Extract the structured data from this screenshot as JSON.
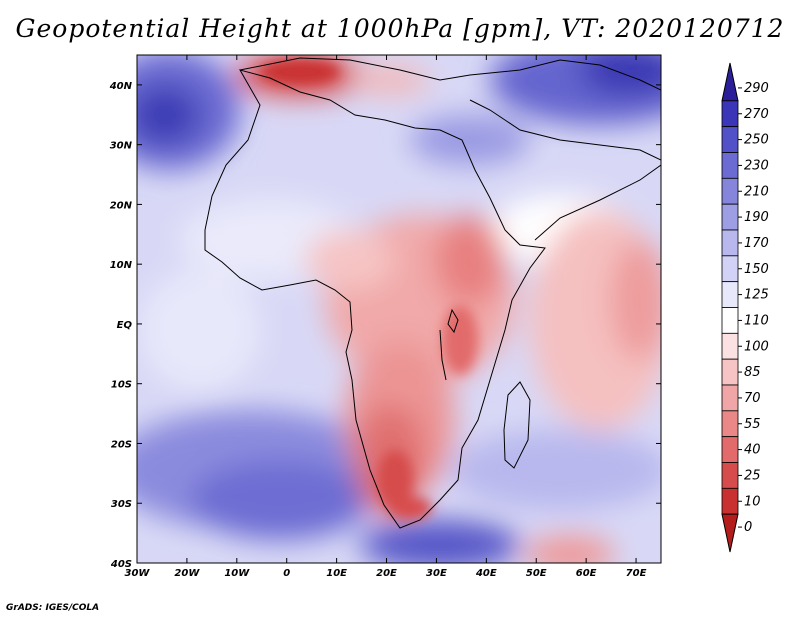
{
  "title": "Geopotential Height at 1000hPa [gpm], VT: 2020120712",
  "credit": "GrADS: IGES/COLA",
  "map": {
    "lon_range": [
      -30,
      75
    ],
    "lat_range": [
      -40,
      45
    ],
    "lon_ticks": [
      "30W",
      "20W",
      "10W",
      "0",
      "10E",
      "20E",
      "30E",
      "40E",
      "50E",
      "60E",
      "70E"
    ],
    "lat_ticks": [
      "40N",
      "30N",
      "20N",
      "10N",
      "EQ",
      "10S",
      "20S",
      "30S",
      "40S"
    ]
  },
  "colorbar": {
    "labels": [
      "290",
      "270",
      "250",
      "230",
      "210",
      "190",
      "170",
      "150",
      "125",
      "110",
      "100",
      "85",
      "70",
      "55",
      "40",
      "25",
      "10",
      "0"
    ],
    "colors": [
      "#2b1f99",
      "#3b35b8",
      "#5351c8",
      "#6b6bd3",
      "#8585dc",
      "#9e9ee5",
      "#b8b8ee",
      "#d2d2f6",
      "#e8e8fb",
      "#ffffff",
      "#fbe1e1",
      "#f6c4c4",
      "#f0a6a6",
      "#ea8888",
      "#e26a6a",
      "#d64c4c",
      "#c93030",
      "#b51c1c"
    ]
  }
}
